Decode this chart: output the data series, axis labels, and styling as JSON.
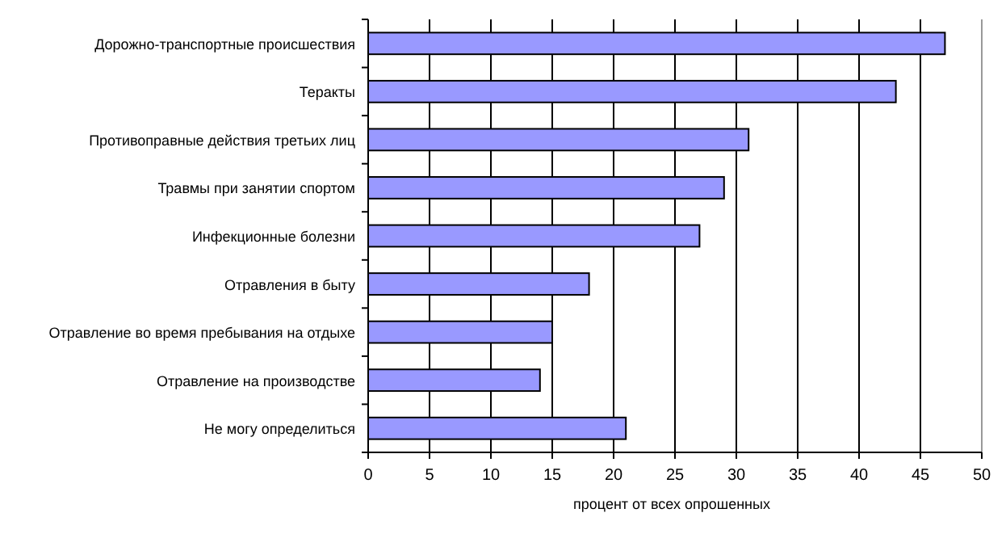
{
  "chart_data": {
    "type": "bar",
    "orientation": "horizontal",
    "xlabel": "процент от всех опрошенных",
    "categories": [
      "Дорожно-транспортные происшествия",
      "Теракты",
      "Противоправные действия третьих лиц",
      "Травмы при занятии спортом",
      "Инфекционные болезни",
      "Отравления в быту",
      "Отравление во время пребывания на отдыхе",
      "Отравление на производстве",
      "Не могу определиться"
    ],
    "values": [
      47,
      43,
      31,
      29,
      27,
      18,
      15,
      14,
      21
    ],
    "color": "#9999ff",
    "xlim": [
      0,
      50
    ],
    "xticks": [
      0,
      5,
      10,
      15,
      20,
      25,
      30,
      35,
      40,
      45,
      50
    ],
    "grid": "x"
  }
}
